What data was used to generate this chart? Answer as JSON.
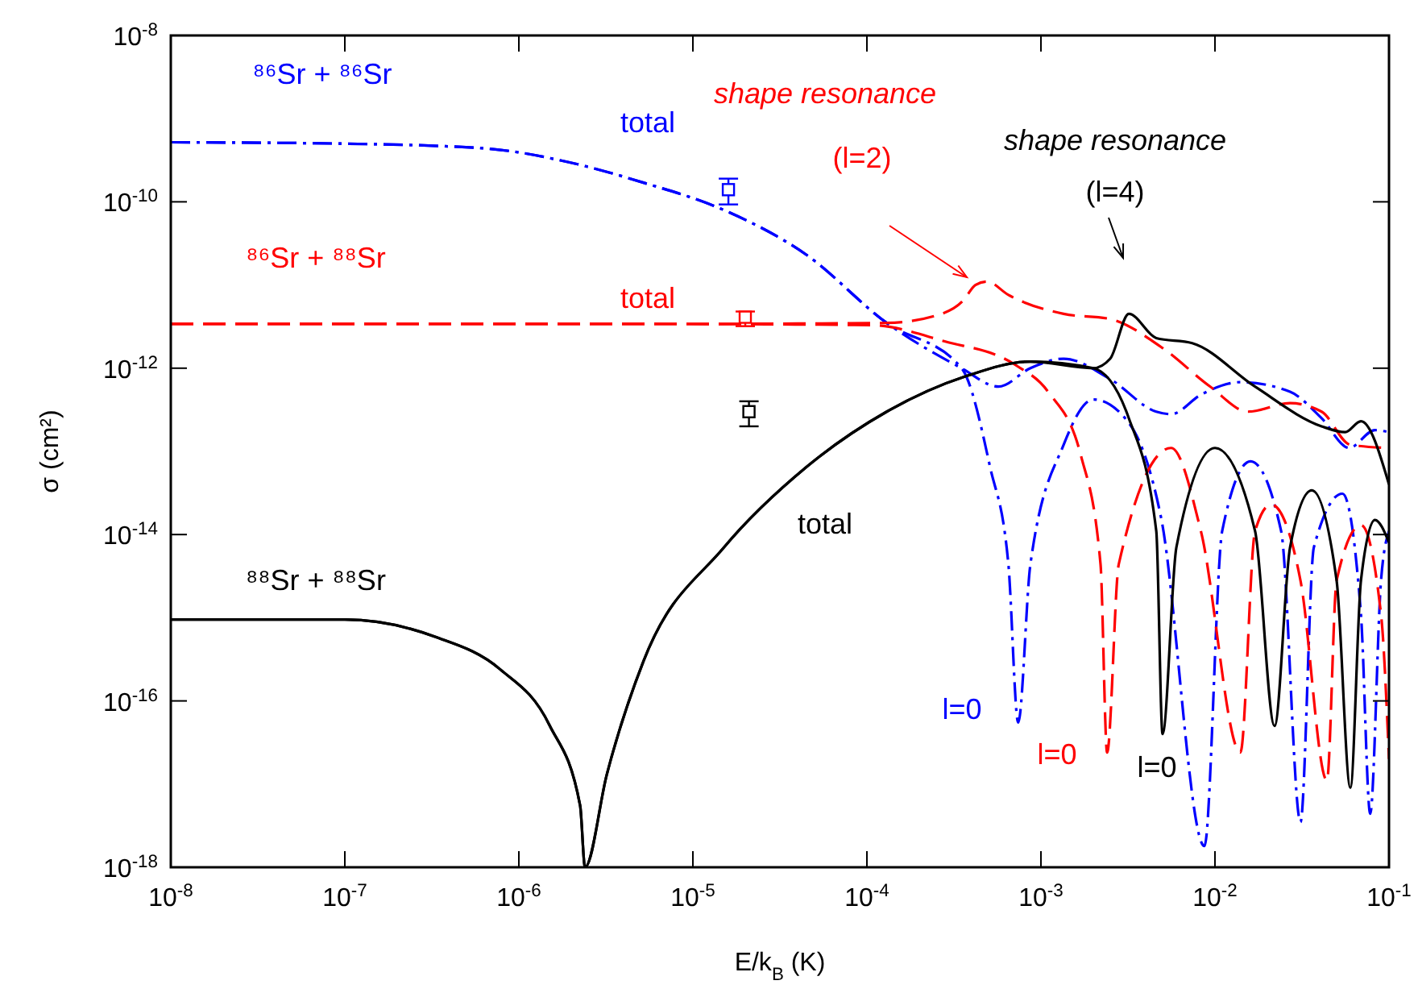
{
  "chart_data": {
    "type": "line",
    "xlabel": "E/k$_{B}$ (K)",
    "ylabel": "σ (cm²)",
    "log": "xy",
    "xlim": [
      1e-08,
      0.1
    ],
    "ylim": [
      1e-18,
      1e-08
    ],
    "xticks": [
      {
        "value": 1e-08,
        "label": "10$^{-8}$"
      },
      {
        "value": 1e-07,
        "label": "10$^{-7}$"
      },
      {
        "value": 1e-06,
        "label": "10$^{-6}$"
      },
      {
        "value": 1e-05,
        "label": "10$^{-5}$"
      },
      {
        "value": 0.0001,
        "label": "10$^{-4}$"
      },
      {
        "value": 0.001,
        "label": "10$^{-3}$"
      },
      {
        "value": 0.01,
        "label": "10$^{-2}$"
      },
      {
        "value": 0.1,
        "label": "10$^{-1}$"
      }
    ],
    "yticks": [
      {
        "value": 1e-18,
        "label": "10$^{-18}$"
      },
      {
        "value": 1e-16,
        "label": "10$^{-16}$"
      },
      {
        "value": 1e-14,
        "label": "10$^{-14}$"
      },
      {
        "value": 1e-12,
        "label": "10$^{-12}$"
      },
      {
        "value": 1e-10,
        "label": "10$^{-10}$"
      },
      {
        "value": 1e-08,
        "label": "10$^{-8}$"
      }
    ],
    "series": [
      {
        "color": "#0000ff",
        "line_style": "dashdot",
        "x": [
          1e-08,
          1e-07,
          6.3e-07,
          1.8e-06,
          5.2e-06,
          1.5e-05,
          4.5e-05,
          0.00013,
          0.00035,
          0.00057,
          0.00087,
          0.00135,
          0.0025,
          0.0046,
          0.0056,
          0.0083,
          0.014,
          0.027,
          0.041,
          0.059,
          0.083,
          0.1
        ],
        "values": [
          5.2e-10,
          5e-10,
          4.4e-10,
          3.1e-10,
          1.7e-10,
          8e-11,
          2.3e-11,
          3.5e-12,
          1e-12,
          6e-13,
          1e-12,
          1.3e-12,
          7.4e-13,
          3e-13,
          2.8e-13,
          4.8e-13,
          6.8e-13,
          5.2e-13,
          2.5e-13,
          1.1e-13,
          1.8e-13,
          1.7e-13
        ]
      },
      {
        "color": "#0000ff",
        "line_style": "dashdot",
        "x": [
          1e-08,
          1e-07,
          6.3e-07,
          1.8e-06,
          5.2e-06,
          1.5e-05,
          4.5e-05,
          0.00013,
          0.00035,
          0.00051,
          0.00065,
          0.00074,
          0.00087,
          0.00135,
          0.002,
          0.0032,
          0.0049,
          0.0087,
          0.011,
          0.016,
          0.024,
          0.031,
          0.037,
          0.054,
          0.069,
          0.078,
          0.09,
          0.1
        ],
        "values": [
          5.2e-10,
          5e-10,
          4.4e-10,
          3.1e-10,
          1.7e-10,
          8e-11,
          2.3e-11,
          3.5e-12,
          1e-12,
          6.5e-14,
          4.4e-15,
          5.5e-17,
          4.4e-15,
          1.2e-13,
          4.2e-13,
          2.2e-13,
          1.6e-14,
          1.8e-18,
          1.1e-14,
          7.6e-14,
          1.1e-14,
          3.5e-18,
          7e-15,
          3.1e-14,
          1.1e-15,
          4.4e-18,
          2.8e-15,
          1.1e-14
        ]
      },
      {
        "color": "#ff0000",
        "line_style": "dashed",
        "x": [
          1e-08,
          5.2e-06,
          0.00013,
          0.00025,
          0.00036,
          0.00042,
          0.00049,
          0.00065,
          0.00135,
          0.0025,
          0.0049,
          0.0094,
          0.0155,
          0.027,
          0.041,
          0.06,
          0.1
        ],
        "values": [
          3.4e-12,
          3.4e-12,
          3.5e-12,
          4.3e-12,
          6.6e-12,
          1e-11,
          1.1e-11,
          7.6e-12,
          4.5e-12,
          3.9e-12,
          1.8e-12,
          6e-13,
          3e-13,
          3.8e-13,
          3e-13,
          1.2e-13,
          1.1e-13
        ]
      },
      {
        "color": "#ff0000",
        "line_style": "dashed",
        "x": [
          1e-08,
          5.2e-06,
          0.000105,
          0.00028,
          0.00071,
          0.0011,
          0.0017,
          0.0022,
          0.0024,
          0.0028,
          0.0056,
          0.0083,
          0.014,
          0.017,
          0.021,
          0.031,
          0.044,
          0.05,
          0.069,
          0.09,
          0.1
        ],
        "values": [
          3.4e-12,
          3.4e-12,
          3.3e-12,
          2.1e-12,
          1.1e-12,
          5.2e-13,
          8.8e-14,
          4.4e-15,
          2.4e-17,
          4.4e-15,
          1.1e-13,
          1.1e-14,
          2.4e-17,
          1.1e-14,
          2.3e-14,
          2.8e-15,
          1.1e-17,
          2.8e-15,
          1.3e-14,
          1.1e-15,
          2e-17
        ]
      },
      {
        "color": "#000000",
        "line_style": "solid",
        "x": [
          1e-08,
          1e-07,
          3.3e-07,
          7.8e-07,
          1.5e-06,
          2.25e-06,
          2.4e-06,
          3.2e-06,
          5.2e-06,
          1.5e-05,
          4.5e-05,
          0.00013,
          0.00037,
          0.00087,
          0.002,
          0.0025,
          0.0032,
          0.0046,
          0.0074,
          0.017,
          0.041,
          0.056,
          0.069,
          0.1
        ],
        "values": [
          9.5e-16,
          9.5e-16,
          5.9e-16,
          2.4e-16,
          5.1e-17,
          5.5e-18,
          1e-18,
          1.3e-17,
          3e-16,
          6.9e-15,
          6.5e-14,
          3e-13,
          8e-13,
          1.2e-12,
          1e-12,
          1.3e-12,
          4.5e-12,
          2.3e-12,
          2e-12,
          6e-13,
          2e-13,
          1.7e-13,
          2.3e-13,
          4e-14
        ]
      },
      {
        "color": "#000000",
        "line_style": "solid",
        "x": [
          1e-08,
          1e-07,
          3.3e-07,
          7.8e-07,
          1.5e-06,
          2.25e-06,
          2.4e-06,
          3.2e-06,
          5.2e-06,
          1.5e-05,
          4.5e-05,
          0.00013,
          0.00037,
          0.00087,
          0.002,
          0.0032,
          0.0046,
          0.005,
          0.006,
          0.01,
          0.017,
          0.022,
          0.027,
          0.036,
          0.05,
          0.06,
          0.069,
          0.083,
          0.1
        ],
        "values": [
          9.5e-16,
          9.5e-16,
          5.9e-16,
          2.4e-16,
          5.1e-17,
          5.5e-18,
          1e-18,
          1.3e-17,
          3e-16,
          6.9e-15,
          6.5e-14,
          3e-13,
          8e-13,
          1.2e-12,
          1e-12,
          2.5e-13,
          1.1e-14,
          4e-17,
          7e-15,
          1.1e-13,
          1.1e-14,
          5e-17,
          7e-15,
          3.4e-14,
          2.8e-15,
          9e-18,
          2.8e-15,
          1.5e-14,
          8e-15
        ]
      },
      {
        "type": "scatter",
        "color": "#0000ff",
        "marker": "square",
        "x": [
          1.6e-05
        ],
        "values": [
          1.4e-10
        ],
        "errors": [
          [
            9.3e-11,
            1.9e-10
          ]
        ]
      },
      {
        "type": "scatter",
        "color": "#ff0000",
        "marker": "square",
        "x": [
          2e-05
        ],
        "values": [
          4.1e-12
        ],
        "errors": [
          [
            3.2e-12,
            4.8e-12
          ]
        ]
      },
      {
        "type": "scatter",
        "color": "#000000",
        "marker": "square",
        "x": [
          2.1e-05
        ],
        "values": [
          3e-13
        ],
        "errors": [
          [
            2e-13,
            4e-13
          ]
        ]
      }
    ],
    "annotations": [
      "⁸⁶Sr + ⁸⁶Sr",
      "total",
      "shape resonance",
      "(l=2)",
      "shape resonance",
      "(l=4)",
      "⁸⁶Sr + ⁸⁸Sr",
      "total",
      "total",
      "⁸⁸Sr + ⁸⁸Sr",
      "l=0",
      "l=0",
      "l=0"
    ]
  }
}
